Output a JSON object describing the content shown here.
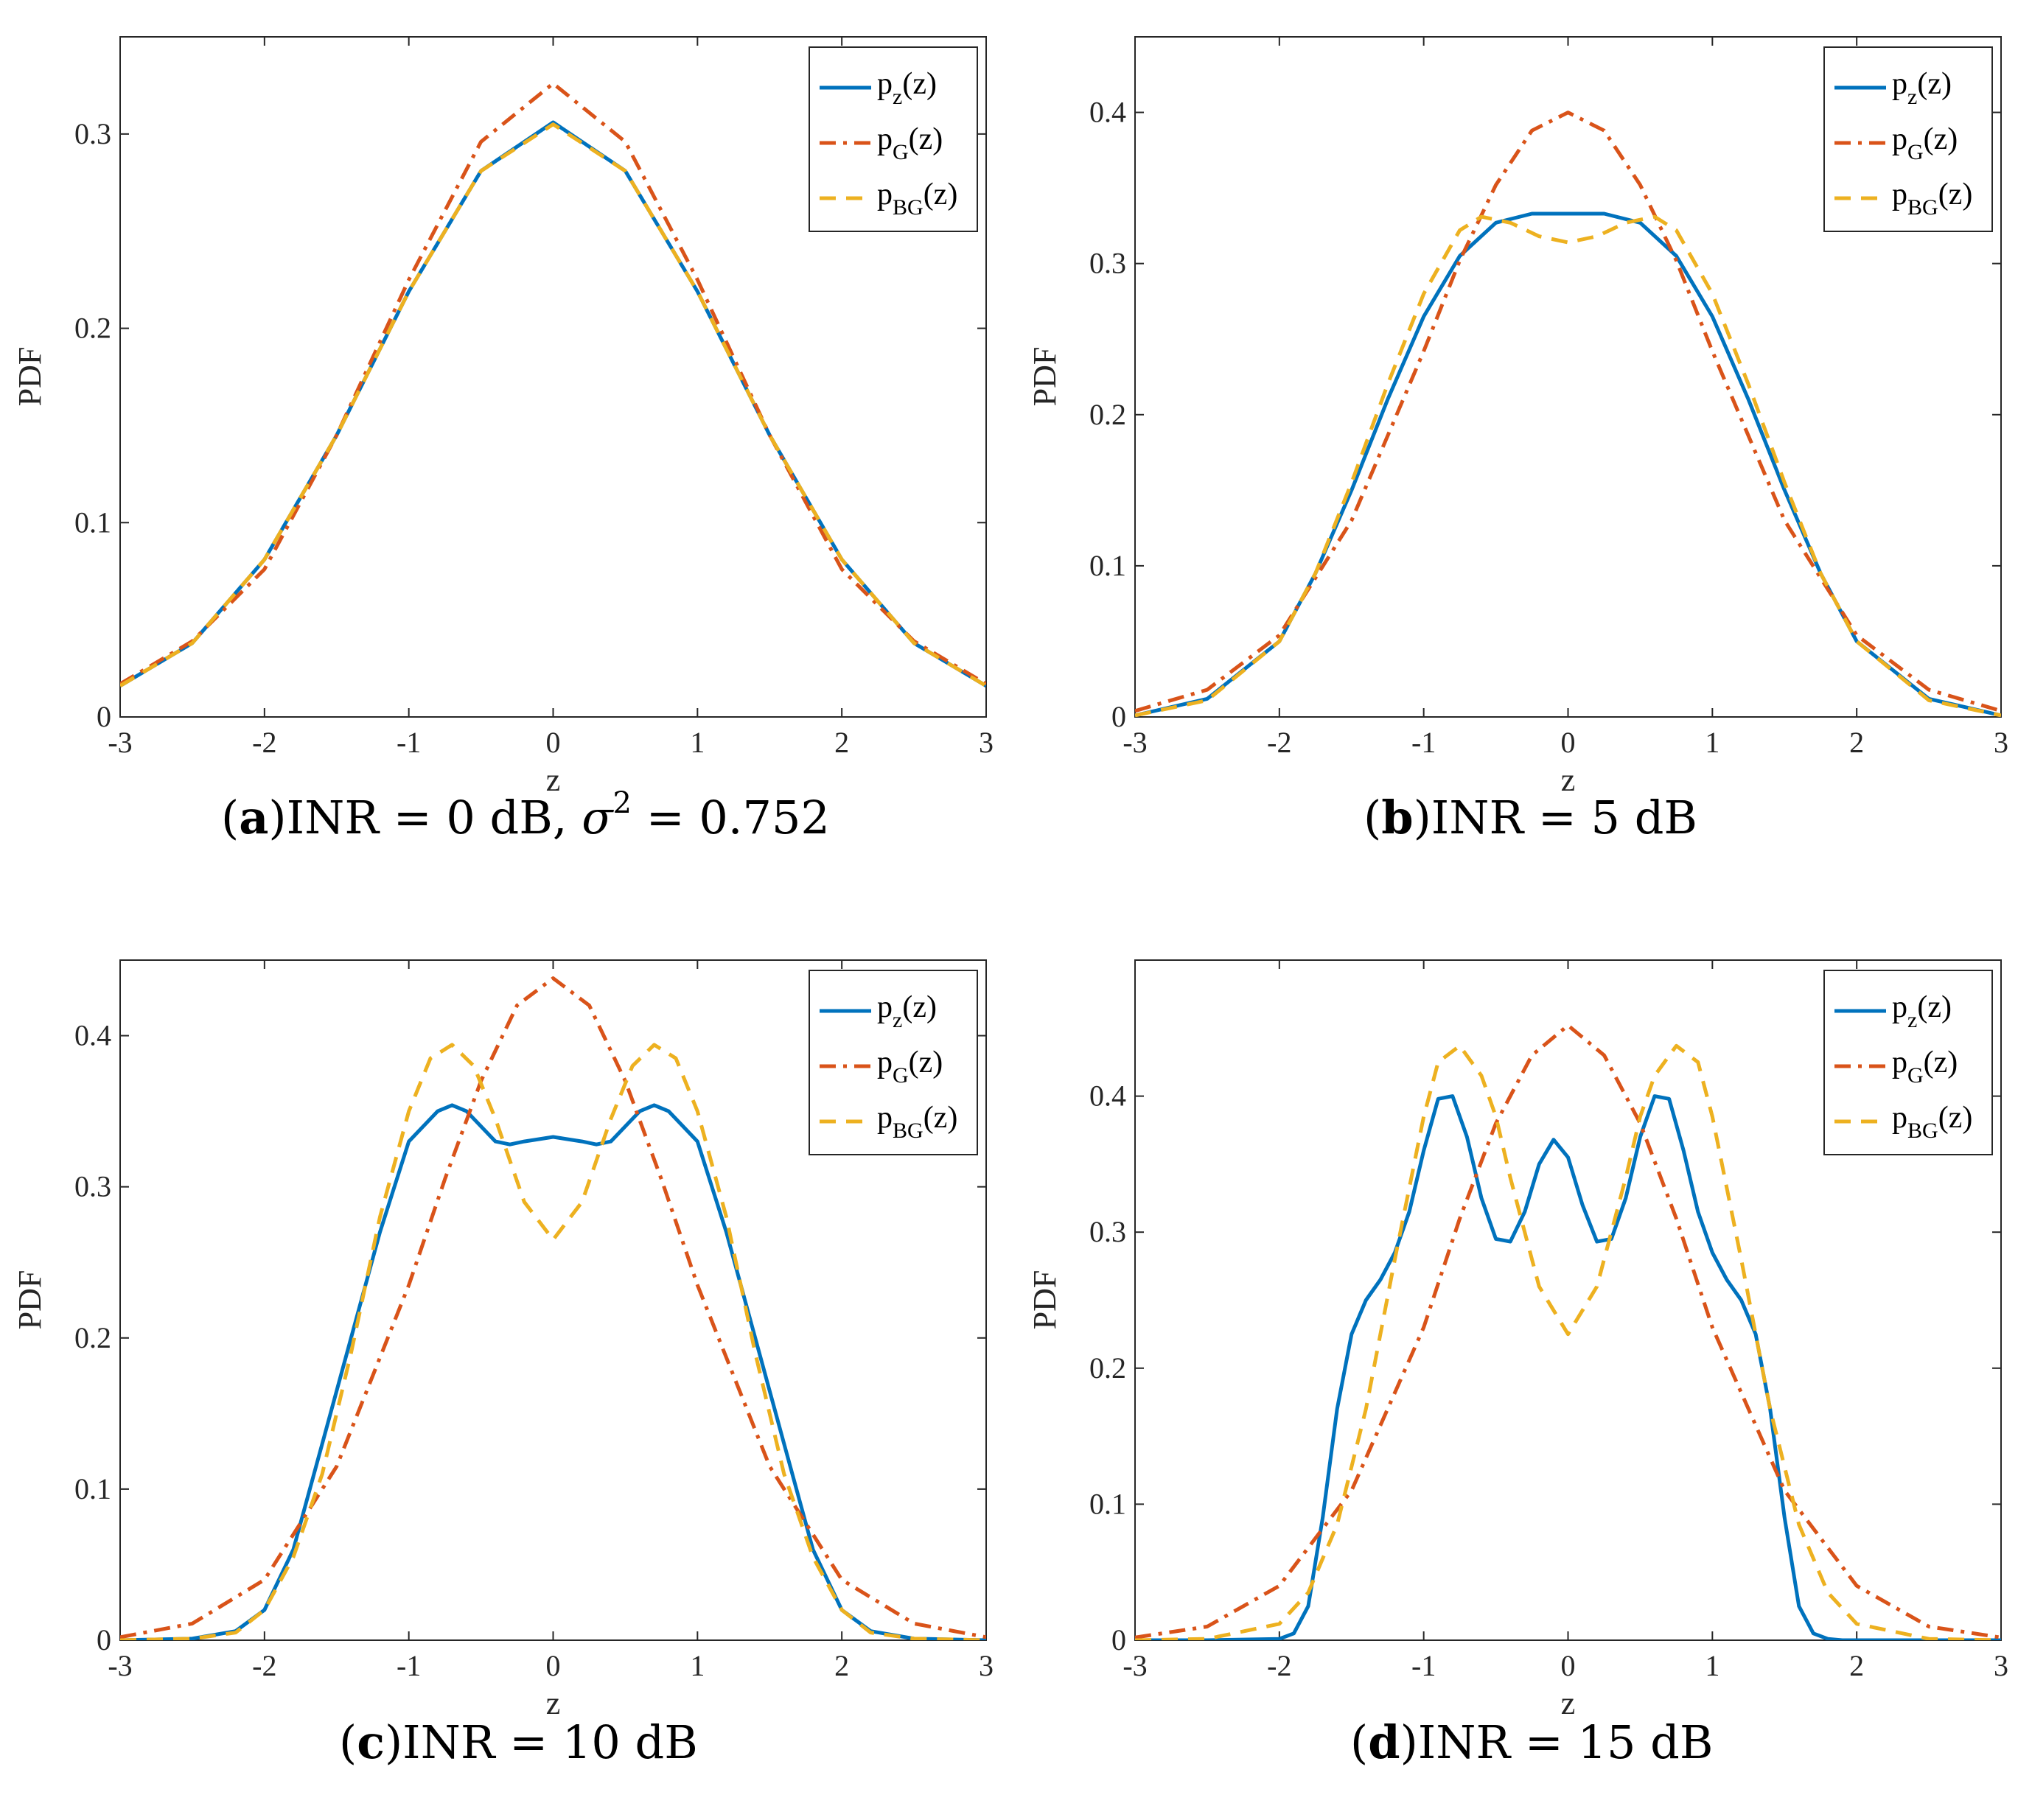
{
  "chart_data": [
    {
      "type": "line",
      "panel": "a",
      "caption_letter": "a",
      "caption_text": "INR = 0 dB, ",
      "caption_symbol": "σ",
      "caption_exp": "2",
      "caption_tail": " = 0.752",
      "xlabel": "z",
      "ylabel": "PDF",
      "xlim": [
        -3,
        3
      ],
      "ylim": [
        0,
        0.35
      ],
      "xticks": [
        -3,
        -2,
        -1,
        0,
        1,
        2,
        3
      ],
      "yticks": [
        0,
        0.1,
        0.2,
        0.3
      ],
      "ytick_labels": [
        "0",
        "0.1",
        "0.2",
        "0.3"
      ],
      "legend_position": "top-right",
      "series": [
        {
          "name": "p_z(z)",
          "base": "p",
          "sub": "z",
          "arg": "(z)",
          "style": "solid",
          "color": "#0072BD",
          "x": [
            -3,
            -2.5,
            -2,
            -1.5,
            -1,
            -0.5,
            0,
            0.5,
            1,
            1.5,
            2,
            2.5,
            3
          ],
          "y": [
            0.016,
            0.038,
            0.081,
            0.145,
            0.219,
            0.281,
            0.306,
            0.281,
            0.219,
            0.145,
            0.081,
            0.038,
            0.016
          ]
        },
        {
          "name": "p_G(z)",
          "base": "p",
          "sub": "G",
          "arg": "(z)",
          "style": "dashdot",
          "color": "#D95319",
          "x": [
            -3,
            -2.5,
            -2,
            -1.5,
            -1,
            -0.5,
            0,
            0.5,
            1,
            1.5,
            2,
            2.5,
            3
          ],
          "y": [
            0.017,
            0.039,
            0.076,
            0.145,
            0.225,
            0.296,
            0.326,
            0.296,
            0.225,
            0.145,
            0.076,
            0.039,
            0.017
          ]
        },
        {
          "name": "p_BG(z)",
          "base": "p",
          "sub": "BG",
          "arg": "(z)",
          "style": "dashed",
          "color": "#EDB120",
          "x": [
            -3,
            -2.5,
            -2,
            -1.5,
            -1,
            -0.5,
            0,
            0.5,
            1,
            1.5,
            2,
            2.5,
            3
          ],
          "y": [
            0.016,
            0.038,
            0.081,
            0.145,
            0.219,
            0.281,
            0.305,
            0.281,
            0.219,
            0.145,
            0.081,
            0.038,
            0.016
          ]
        }
      ]
    },
    {
      "type": "line",
      "panel": "b",
      "caption_letter": "b",
      "caption_text": "INR = 5 dB",
      "xlabel": "z",
      "ylabel": "PDF",
      "xlim": [
        -3,
        3
      ],
      "ylim": [
        0,
        0.45
      ],
      "xticks": [
        -3,
        -2,
        -1,
        0,
        1,
        2,
        3
      ],
      "yticks": [
        0,
        0.1,
        0.2,
        0.3,
        0.4
      ],
      "ytick_labels": [
        "0",
        "0.1",
        "0.2",
        "0.3",
        "0.4"
      ],
      "legend_position": "top-right",
      "series": [
        {
          "name": "p_z(z)",
          "base": "p",
          "sub": "z",
          "arg": "(z)",
          "style": "solid",
          "color": "#0072BD",
          "x": [
            -3,
            -2.5,
            -2,
            -1.75,
            -1.5,
            -1.25,
            -1,
            -0.75,
            -0.5,
            -0.25,
            0,
            0.25,
            0.5,
            0.75,
            1,
            1.25,
            1.5,
            1.75,
            2,
            2.5,
            3
          ],
          "y": [
            0.001,
            0.012,
            0.05,
            0.095,
            0.15,
            0.21,
            0.265,
            0.305,
            0.327,
            0.333,
            0.333,
            0.333,
            0.327,
            0.305,
            0.265,
            0.21,
            0.15,
            0.095,
            0.05,
            0.012,
            0.001
          ]
        },
        {
          "name": "p_G(z)",
          "base": "p",
          "sub": "G",
          "arg": "(z)",
          "style": "dashdot",
          "color": "#D95319",
          "x": [
            -3,
            -2.5,
            -2,
            -1.5,
            -1,
            -0.75,
            -0.5,
            -0.25,
            0,
            0.25,
            0.5,
            0.75,
            1,
            1.5,
            2,
            2.5,
            3
          ],
          "y": [
            0.004,
            0.018,
            0.054,
            0.13,
            0.242,
            0.302,
            0.352,
            0.388,
            0.4,
            0.388,
            0.352,
            0.302,
            0.242,
            0.13,
            0.054,
            0.018,
            0.004
          ]
        },
        {
          "name": "p_BG(z)",
          "base": "p",
          "sub": "BG",
          "arg": "(z)",
          "style": "dashed",
          "color": "#EDB120",
          "x": [
            -3,
            -2.5,
            -2,
            -1.75,
            -1.5,
            -1.25,
            -1,
            -0.75,
            -0.6,
            -0.4,
            -0.2,
            0,
            0.2,
            0.4,
            0.6,
            0.75,
            1,
            1.25,
            1.5,
            1.75,
            2,
            2.5,
            3
          ],
          "y": [
            0.001,
            0.011,
            0.05,
            0.095,
            0.155,
            0.22,
            0.28,
            0.322,
            0.331,
            0.327,
            0.318,
            0.314,
            0.318,
            0.327,
            0.331,
            0.322,
            0.28,
            0.22,
            0.155,
            0.095,
            0.05,
            0.011,
            0.001
          ]
        }
      ]
    },
    {
      "type": "line",
      "panel": "c",
      "caption_letter": "c",
      "caption_text": "INR = 10 dB",
      "xlabel": "z",
      "ylabel": "PDF",
      "xlim": [
        -3,
        3
      ],
      "ylim": [
        0,
        0.45
      ],
      "xticks": [
        -3,
        -2,
        -1,
        0,
        1,
        2,
        3
      ],
      "yticks": [
        0,
        0.1,
        0.2,
        0.3,
        0.4
      ],
      "ytick_labels": [
        "0",
        "0.1",
        "0.2",
        "0.3",
        "0.4"
      ],
      "legend_position": "top-right",
      "series": [
        {
          "name": "p_z(z)",
          "base": "p",
          "sub": "z",
          "arg": "(z)",
          "style": "solid",
          "color": "#0072BD",
          "x": [
            -3,
            -2.5,
            -2.2,
            -2,
            -1.8,
            -1.6,
            -1.4,
            -1.2,
            -1,
            -0.8,
            -0.7,
            -0.6,
            -0.4,
            -0.3,
            -0.2,
            0,
            0.2,
            0.3,
            0.4,
            0.6,
            0.7,
            0.8,
            1,
            1.2,
            1.4,
            1.6,
            1.8,
            2,
            2.2,
            2.5,
            3
          ],
          "y": [
            0,
            0.001,
            0.006,
            0.02,
            0.06,
            0.13,
            0.2,
            0.27,
            0.33,
            0.35,
            0.354,
            0.35,
            0.33,
            0.328,
            0.33,
            0.333,
            0.33,
            0.328,
            0.33,
            0.35,
            0.354,
            0.35,
            0.33,
            0.27,
            0.2,
            0.13,
            0.06,
            0.02,
            0.006,
            0.001,
            0
          ]
        },
        {
          "name": "p_G(z)",
          "base": "p",
          "sub": "G",
          "arg": "(z)",
          "style": "dashdot",
          "color": "#D95319",
          "x": [
            -3,
            -2.5,
            -2,
            -1.5,
            -1,
            -0.75,
            -0.5,
            -0.25,
            0,
            0.25,
            0.5,
            0.75,
            1,
            1.5,
            2,
            2.5,
            3
          ],
          "y": [
            0.002,
            0.011,
            0.04,
            0.115,
            0.235,
            0.305,
            0.37,
            0.42,
            0.438,
            0.42,
            0.37,
            0.305,
            0.235,
            0.115,
            0.04,
            0.011,
            0.002
          ]
        },
        {
          "name": "p_BG(z)",
          "base": "p",
          "sub": "BG",
          "arg": "(z)",
          "style": "dashed",
          "color": "#EDB120",
          "x": [
            -3,
            -2.5,
            -2.2,
            -2,
            -1.8,
            -1.6,
            -1.4,
            -1.2,
            -1,
            -0.85,
            -0.7,
            -0.55,
            -0.4,
            -0.2,
            0,
            0.2,
            0.4,
            0.55,
            0.7,
            0.85,
            1,
            1.2,
            1.4,
            1.6,
            1.8,
            2,
            2.2,
            2.5,
            3
          ],
          "y": [
            0,
            0.001,
            0.005,
            0.02,
            0.055,
            0.11,
            0.19,
            0.28,
            0.35,
            0.385,
            0.394,
            0.38,
            0.345,
            0.29,
            0.265,
            0.29,
            0.345,
            0.38,
            0.394,
            0.385,
            0.35,
            0.28,
            0.19,
            0.11,
            0.055,
            0.02,
            0.005,
            0.001,
            0
          ]
        }
      ]
    },
    {
      "type": "line",
      "panel": "d",
      "caption_letter": "d",
      "caption_text": "INR = 15 dB",
      "xlabel": "z",
      "ylabel": "PDF",
      "xlim": [
        -3,
        3
      ],
      "ylim": [
        0,
        0.5
      ],
      "xticks": [
        -3,
        -2,
        -1,
        0,
        1,
        2,
        3
      ],
      "yticks": [
        0,
        0.1,
        0.2,
        0.3,
        0.4
      ],
      "ytick_labels": [
        "0",
        "0.1",
        "0.2",
        "0.3",
        "0.4"
      ],
      "legend_position": "top-right",
      "series": [
        {
          "name": "p_z(z)",
          "base": "p",
          "sub": "z",
          "arg": "(z)",
          "style": "solid",
          "color": "#0072BD",
          "x": [
            -3,
            -2.5,
            -2,
            -1.9,
            -1.8,
            -1.7,
            -1.6,
            -1.5,
            -1.4,
            -1.3,
            -1.2,
            -1.1,
            -1,
            -0.9,
            -0.8,
            -0.7,
            -0.6,
            -0.5,
            -0.4,
            -0.3,
            -0.2,
            -0.1,
            0,
            0.1,
            0.2,
            0.3,
            0.4,
            0.5,
            0.6,
            0.7,
            0.8,
            0.9,
            1,
            1.1,
            1.2,
            1.3,
            1.4,
            1.5,
            1.6,
            1.7,
            1.8,
            1.9,
            2,
            2.5,
            3
          ],
          "y": [
            0,
            0,
            0.001,
            0.005,
            0.025,
            0.09,
            0.17,
            0.225,
            0.25,
            0.265,
            0.285,
            0.315,
            0.36,
            0.398,
            0.4,
            0.37,
            0.325,
            0.295,
            0.293,
            0.315,
            0.35,
            0.368,
            0.355,
            0.32,
            0.293,
            0.295,
            0.325,
            0.37,
            0.4,
            0.398,
            0.36,
            0.315,
            0.285,
            0.265,
            0.25,
            0.225,
            0.17,
            0.09,
            0.025,
            0.005,
            0.001,
            0,
            0,
            0,
            0
          ]
        },
        {
          "name": "p_G(z)",
          "base": "p",
          "sub": "G",
          "arg": "(z)",
          "style": "dashdot",
          "color": "#D95319",
          "x": [
            -3,
            -2.5,
            -2,
            -1.5,
            -1,
            -0.75,
            -0.5,
            -0.25,
            0,
            0.25,
            0.5,
            0.75,
            1,
            1.5,
            2,
            2.5,
            3
          ],
          "y": [
            0.002,
            0.01,
            0.04,
            0.11,
            0.23,
            0.31,
            0.38,
            0.43,
            0.452,
            0.43,
            0.38,
            0.31,
            0.23,
            0.11,
            0.04,
            0.01,
            0.002
          ]
        },
        {
          "name": "p_BG(z)",
          "base": "p",
          "sub": "BG",
          "arg": "(z)",
          "style": "dashed",
          "color": "#EDB120",
          "x": [
            -3,
            -2.5,
            -2,
            -1.8,
            -1.6,
            -1.4,
            -1.2,
            -1,
            -0.9,
            -0.75,
            -0.6,
            -0.5,
            -0.4,
            -0.2,
            0,
            0.2,
            0.4,
            0.5,
            0.6,
            0.75,
            0.9,
            1,
            1.2,
            1.4,
            1.6,
            1.8,
            2,
            2.5,
            3
          ],
          "y": [
            0,
            0.001,
            0.012,
            0.035,
            0.085,
            0.17,
            0.28,
            0.385,
            0.425,
            0.437,
            0.415,
            0.385,
            0.34,
            0.26,
            0.225,
            0.26,
            0.34,
            0.385,
            0.415,
            0.437,
            0.425,
            0.385,
            0.28,
            0.17,
            0.085,
            0.035,
            0.012,
            0.001,
            0
          ]
        }
      ]
    }
  ]
}
